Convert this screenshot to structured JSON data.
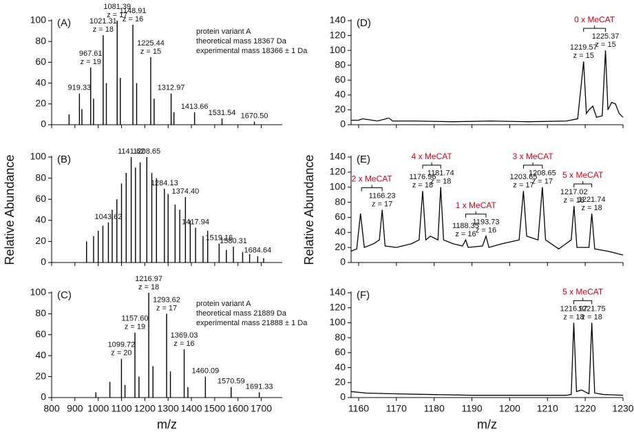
{
  "chart_data": [
    {
      "type": "stem",
      "label": "(A)",
      "color": "#000000",
      "x": [
        875,
        919.33,
        930,
        967.61,
        980,
        1021.31,
        1035,
        1081.39,
        1095,
        1148.91,
        1165,
        1225.44,
        1240,
        1312.97,
        1325,
        1413.66,
        1531.54,
        1670.5
      ],
      "values": [
        10,
        30,
        15,
        55,
        25,
        86,
        40,
        100,
        45,
        96,
        40,
        65,
        25,
        30,
        12,
        12,
        6,
        3
      ],
      "xlim": [
        800,
        1790
      ],
      "xticks": [
        800,
        900,
        1000,
        1100,
        1200,
        1300,
        1400,
        1500,
        1600,
        1700
      ],
      "xtick_labels": false,
      "ylim": [
        0,
        100
      ],
      "yticks": [
        0,
        20,
        40,
        60,
        80,
        100
      ],
      "notes": [
        "protein variant A",
        "theoretical mass 18367 Da",
        "experimental mass 18366 ± 1 Da"
      ],
      "annotations": [
        {
          "x": 919.33,
          "y": 30,
          "text": "919.33"
        },
        {
          "x": 967.61,
          "y": 55,
          "text": "967.61",
          "subtext": "z = 19"
        },
        {
          "x": 1021.31,
          "y": 86,
          "text": "1021.31",
          "subtext": "z = 18"
        },
        {
          "x": 1081.39,
          "y": 100,
          "text": "1081.39",
          "subtext": "z = 17"
        },
        {
          "x": 1148.91,
          "y": 96,
          "text": "1148.91",
          "subtext": "z = 16"
        },
        {
          "x": 1225.44,
          "y": 65,
          "text": "1225.44",
          "subtext": "z = 15"
        },
        {
          "x": 1312.97,
          "y": 30,
          "text": "1312.97"
        },
        {
          "x": 1413.66,
          "y": 12,
          "text": "1413.66"
        },
        {
          "x": 1531.54,
          "y": 6,
          "text": "1531.54"
        },
        {
          "x": 1670.5,
          "y": 3,
          "text": "1670.50"
        }
      ]
    },
    {
      "type": "stem",
      "label": "(B)",
      "color": "#000000",
      "ylabel": "Relative Abundance",
      "x": [
        950,
        980,
        1000,
        1020,
        1043.62,
        1060,
        1080,
        1100,
        1120,
        1141.62,
        1160,
        1180,
        1208.65,
        1230,
        1250,
        1284.13,
        1300,
        1330,
        1350,
        1374.4,
        1395,
        1417.94,
        1450,
        1470,
        1519.16,
        1550,
        1580.31,
        1620,
        1650,
        1684.64,
        1710
      ],
      "values": [
        20,
        25,
        30,
        35,
        38,
        50,
        60,
        75,
        85,
        100,
        90,
        95,
        100,
        85,
        80,
        70,
        65,
        55,
        50,
        62,
        40,
        33,
        25,
        30,
        18,
        12,
        15,
        10,
        8,
        6,
        4
      ],
      "xlim": [
        800,
        1790
      ],
      "xticks": [
        800,
        900,
        1000,
        1100,
        1200,
        1300,
        1400,
        1500,
        1600,
        1700
      ],
      "xtick_labels": false,
      "ylim": [
        0,
        100
      ],
      "yticks": [
        0,
        20,
        40,
        60,
        80,
        100
      ],
      "annotations": [
        {
          "x": 1043.62,
          "y": 38,
          "text": "1043.62"
        },
        {
          "x": 1141.62,
          "y": 100,
          "text": "1141.62"
        },
        {
          "x": 1208.65,
          "y": 100,
          "text": "1208.65"
        },
        {
          "x": 1284.13,
          "y": 70,
          "text": "1284.13"
        },
        {
          "x": 1374.4,
          "y": 62,
          "text": "1374.40"
        },
        {
          "x": 1417.94,
          "y": 33,
          "text": "1417.94"
        },
        {
          "x": 1519.16,
          "y": 18,
          "text": "1519.16"
        },
        {
          "x": 1580.31,
          "y": 15,
          "text": "1580.31"
        },
        {
          "x": 1684.64,
          "y": 6,
          "text": "1684.64"
        }
      ]
    },
    {
      "type": "stem",
      "label": "(C)",
      "color": "#000000",
      "xlabel": "m/z",
      "x": [
        990,
        1050,
        1099.72,
        1115,
        1157.6,
        1175,
        1216.97,
        1235,
        1293.62,
        1310,
        1369.03,
        1385,
        1460.09,
        1570.59,
        1691.33
      ],
      "values": [
        5,
        15,
        37,
        12,
        62,
        20,
        100,
        30,
        80,
        25,
        46,
        10,
        20,
        10,
        5
      ],
      "xlim": [
        800,
        1790
      ],
      "xticks": [
        800,
        900,
        1000,
        1100,
        1200,
        1300,
        1400,
        1500,
        1600,
        1700
      ],
      "xtick_labels": true,
      "ylim": [
        0,
        100
      ],
      "yticks": [
        0,
        20,
        40,
        60,
        80,
        100
      ],
      "notes": [
        "protein variant A",
        "theoretical mass 21889 Da",
        "experimental mass 21888 ± 1 Da"
      ],
      "annotations": [
        {
          "x": 1099.72,
          "y": 37,
          "text": "1099.72",
          "subtext": "z = 20"
        },
        {
          "x": 1157.6,
          "y": 62,
          "text": "1157.60",
          "subtext": "z = 19"
        },
        {
          "x": 1216.97,
          "y": 100,
          "text": "1216.97",
          "subtext": "z = 18"
        },
        {
          "x": 1293.62,
          "y": 80,
          "text": "1293.62",
          "subtext": "z = 17"
        },
        {
          "x": 1369.03,
          "y": 46,
          "text": "1369.03",
          "subtext": "z = 16"
        },
        {
          "x": 1460.09,
          "y": 20,
          "text": "1460.09"
        },
        {
          "x": 1570.59,
          "y": 10,
          "text": "1570.59"
        },
        {
          "x": 1691.33,
          "y": 5,
          "text": "1691.33"
        }
      ]
    },
    {
      "type": "line",
      "label": "(D)",
      "color": "#000000",
      "x": [
        1158,
        1160,
        1161,
        1165,
        1168,
        1169,
        1175,
        1185,
        1195,
        1205,
        1215,
        1218,
        1219.57,
        1220.3,
        1221,
        1222,
        1223,
        1224.5,
        1225.37,
        1226,
        1227,
        1228,
        1229,
        1230
      ],
      "values": [
        6,
        6,
        8,
        5,
        9,
        5,
        5,
        4,
        5,
        4,
        5,
        8,
        85,
        15,
        20,
        25,
        10,
        12,
        100,
        20,
        30,
        28,
        15,
        10
      ],
      "xlim": [
        1158,
        1230
      ],
      "xticks": [
        1160,
        1170,
        1180,
        1190,
        1200,
        1210,
        1220,
        1230
      ],
      "xtick_labels": false,
      "ylim": [
        0,
        140
      ],
      "yticks": [
        0,
        20,
        40,
        60,
        80,
        100,
        120,
        140
      ],
      "groups": [
        {
          "label": "0 x MeCAT",
          "color": "#d0021b",
          "annotations": [
            {
              "x": 1219.57,
              "y": 85,
              "text": "1219.57",
              "subtext": "z = 15"
            },
            {
              "x": 1225.37,
              "y": 100,
              "text": "1225.37",
              "subtext": "z = 15"
            }
          ]
        }
      ]
    },
    {
      "type": "line",
      "label": "(E)",
      "color": "#000000",
      "ylabel": "Relative Abundance",
      "x": [
        1158,
        1159.5,
        1160.5,
        1161.5,
        1164,
        1165.5,
        1166.23,
        1167,
        1170,
        1174,
        1176,
        1176.96,
        1177.8,
        1179,
        1181,
        1181.74,
        1182.5,
        1185,
        1187.5,
        1188.35,
        1189,
        1192.8,
        1193.73,
        1194.5,
        1198,
        1202.5,
        1203.65,
        1204.5,
        1207.5,
        1208.65,
        1209.5,
        1213,
        1216.3,
        1217.02,
        1217.8,
        1221,
        1221.74,
        1222.5,
        1226,
        1230
      ],
      "values": [
        15,
        18,
        65,
        20,
        25,
        30,
        70,
        22,
        20,
        25,
        30,
        95,
        30,
        35,
        30,
        100,
        30,
        25,
        22,
        30,
        20,
        22,
        35,
        20,
        25,
        30,
        95,
        35,
        30,
        100,
        30,
        18,
        30,
        75,
        20,
        20,
        65,
        18,
        15,
        10
      ],
      "xlim": [
        1158,
        1230
      ],
      "xticks": [
        1160,
        1170,
        1180,
        1190,
        1200,
        1210,
        1220,
        1230
      ],
      "xtick_labels": false,
      "ylim": [
        0,
        140
      ],
      "yticks": [
        0,
        20,
        40,
        60,
        80,
        100,
        120,
        140
      ],
      "groups": [
        {
          "label": "2 x MeCAT",
          "color": "#d0021b",
          "annotations": [
            {
              "x": 1166.23,
              "y": 70,
              "text": "1166.23",
              "subtext": "z = 17"
            }
          ]
        },
        {
          "label": "4 x MeCAT",
          "color": "#d0021b",
          "annotations": [
            {
              "x": 1176.96,
              "y": 95,
              "text": "1176.96",
              "subtext": "z = 18"
            },
            {
              "x": 1181.74,
              "y": 100,
              "text": "1181.74",
              "subtext": "z = 18"
            }
          ]
        },
        {
          "label": "1 x MeCAT",
          "color": "#d0021b",
          "annotations": [
            {
              "x": 1188.35,
              "y": 30,
              "text": "1188.35",
              "subtext": "z = 16"
            },
            {
              "x": 1193.73,
              "y": 35,
              "text": "1193.73",
              "subtext": "z = 16"
            }
          ]
        },
        {
          "label": "3 x MeCAT",
          "color": "#d0021b",
          "annotations": [
            {
              "x": 1203.65,
              "y": 95,
              "text": "1203.65",
              "subtext": "z = 17"
            },
            {
              "x": 1208.65,
              "y": 100,
              "text": "1208.65",
              "subtext": "z = 17"
            }
          ]
        },
        {
          "label": "5 x MeCAT",
          "color": "#d0021b",
          "annotations": [
            {
              "x": 1217.02,
              "y": 75,
              "text": "1217.02",
              "subtext": "z = 18"
            },
            {
              "x": 1221.74,
              "y": 65,
              "text": "1221.74",
              "subtext": "z = 18"
            }
          ]
        }
      ]
    },
    {
      "type": "line",
      "label": "(F)",
      "color": "#000000",
      "xlabel": "m/z",
      "x": [
        1158,
        1162,
        1170,
        1180,
        1190,
        1200,
        1210,
        1215,
        1216.3,
        1216.97,
        1217.7,
        1219,
        1221,
        1221.75,
        1222.5,
        1225,
        1230
      ],
      "values": [
        8,
        6,
        5,
        4,
        3,
        3,
        3,
        3,
        4,
        100,
        8,
        10,
        5,
        100,
        6,
        4,
        3
      ],
      "xlim": [
        1158,
        1230
      ],
      "xticks": [
        1160,
        1170,
        1180,
        1190,
        1200,
        1210,
        1220,
        1230
      ],
      "xtick_labels": true,
      "ylim": [
        0,
        140
      ],
      "yticks": [
        0,
        20,
        40,
        60,
        80,
        100,
        120,
        140
      ],
      "groups": [
        {
          "label": "5 x MeCAT",
          "color": "#d0021b",
          "annotations": [
            {
              "x": 1216.97,
              "y": 100,
              "text": "1216.97",
              "subtext": "z = 18"
            },
            {
              "x": 1221.75,
              "y": 100,
              "text": "1221.75",
              "subtext": "z = 18"
            }
          ]
        }
      ]
    }
  ]
}
